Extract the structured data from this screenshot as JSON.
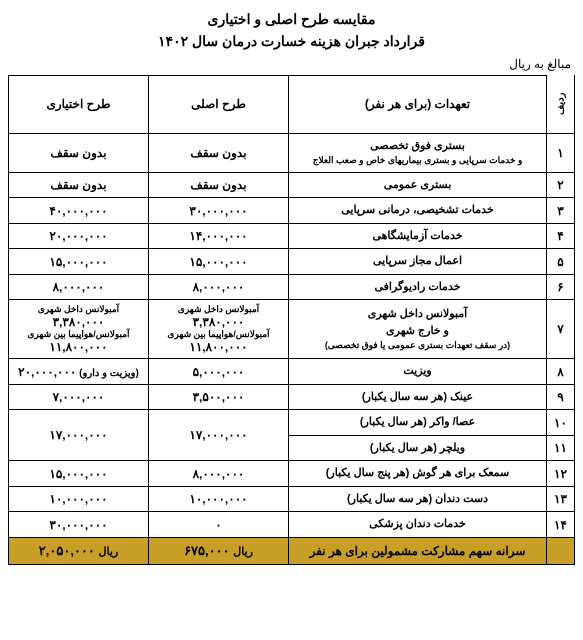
{
  "title_line1": "مقایسه طرح اصلی و اختیاری",
  "title_line2": "قرارداد جبران هزینه خسارت درمان  سال ۱۴۰۲",
  "currency_note": "مبالغ به ریال",
  "headers": {
    "row": "ردیف",
    "desc": "تعهدات (برای هر نفر)",
    "main": "طرح اصلی",
    "opt": "طرح اختیاری"
  },
  "rows": [
    {
      "n": "۱",
      "desc": "بستری فوق تخصصی",
      "desc_sub": "و خدمات سرپایی و بستری بیماریهای خاص و صعب العلاج",
      "main": "بدون سقف",
      "opt": "بدون سقف"
    },
    {
      "n": "۲",
      "desc": "بستری عمومی",
      "main": "بدون سقف",
      "opt": "بدون سقف"
    },
    {
      "n": "۳",
      "desc": "خدمات تشخیصی، درمانی سرپایی",
      "main": "۳۰,۰۰۰,۰۰۰",
      "opt": "۴۰,۰۰۰,۰۰۰"
    },
    {
      "n": "۴",
      "desc": "خدمات آزمایشگاهی",
      "main": "۱۴,۰۰۰,۰۰۰",
      "opt": "۲۰,۰۰۰,۰۰۰"
    },
    {
      "n": "۵",
      "desc": "اعمال مجاز سرپایی",
      "main": "۱۵,۰۰۰,۰۰۰",
      "opt": "۱۵,۰۰۰,۰۰۰"
    },
    {
      "n": "۶",
      "desc": "خدمات رادیوگرافی",
      "main": "۸,۰۰۰,۰۰۰",
      "opt": "۸,۰۰۰,۰۰۰"
    },
    {
      "n": "۷",
      "desc": "آمبولانس  داخل شهری\\nو خارج شهری",
      "desc_sub": "(در سقف تعهدات بستری عمومی یا فوق تخصصی)",
      "main_multi": [
        {
          "l": "آمبولانس  داخل شهری",
          "v": "۳,۳۸۰,۰۰۰"
        },
        {
          "l": "آمبولانس/هواپیما بین شهری",
          "v": "۱۱,۸۰۰,۰۰۰"
        }
      ],
      "opt_multi": [
        {
          "l": "آمبولانس  داخل شهری",
          "v": "۳,۳۸۰,۰۰۰"
        },
        {
          "l": "آمبولانس/هواپیما بین شهری",
          "v": "۱۱,۸۰۰,۰۰۰"
        }
      ]
    },
    {
      "n": "۸",
      "desc": "ویزیت",
      "main": "۵,۰۰۰,۰۰۰",
      "opt": "۲۰,۰۰۰,۰۰۰",
      "opt_after": " (ویزیت و دارو)"
    },
    {
      "n": "۹",
      "desc": "عینک (هر سه سال یکبار)",
      "main": "۳,۵۰۰,۰۰۰",
      "opt": "۷,۰۰۰,۰۰۰"
    },
    {
      "n": "۱۰",
      "desc": "عصا/ واکر (هر سال یکبار)",
      "main_rowspan": true,
      "main": "۱۷,۰۰۰,۰۰۰",
      "opt_rowspan": true,
      "opt": "۱۷,۰۰۰,۰۰۰"
    },
    {
      "n": "۱۱",
      "desc": "ویلچر  (هر سال یکبار)",
      "skip_main": true,
      "skip_opt": true
    },
    {
      "n": "۱۲",
      "desc": "سمعک برای هر گوش (هر پنج سال یکبار)",
      "main": "۸,۰۰۰,۰۰۰",
      "opt": "۱۵,۰۰۰,۰۰۰"
    },
    {
      "n": "۱۳",
      "desc": "دست دندان (هر سه سال یکبار)",
      "main": "۱۰,۰۰۰,۰۰۰",
      "opt": "۱۰,۰۰۰,۰۰۰"
    },
    {
      "n": "۱۴",
      "desc": "خدمات دندان پزشکی",
      "main": "۰",
      "opt": "۳۰,۰۰۰,۰۰۰"
    }
  ],
  "footer": {
    "desc": "سرانه سهم مشارکت مشمولین برای هر نفر",
    "main": "۶۷۵,۰۰۰",
    "opt": "۲,۰۵۰,۰۰۰",
    "unit": "ریال"
  },
  "colors": {
    "footer_bg": "#c79f27"
  }
}
